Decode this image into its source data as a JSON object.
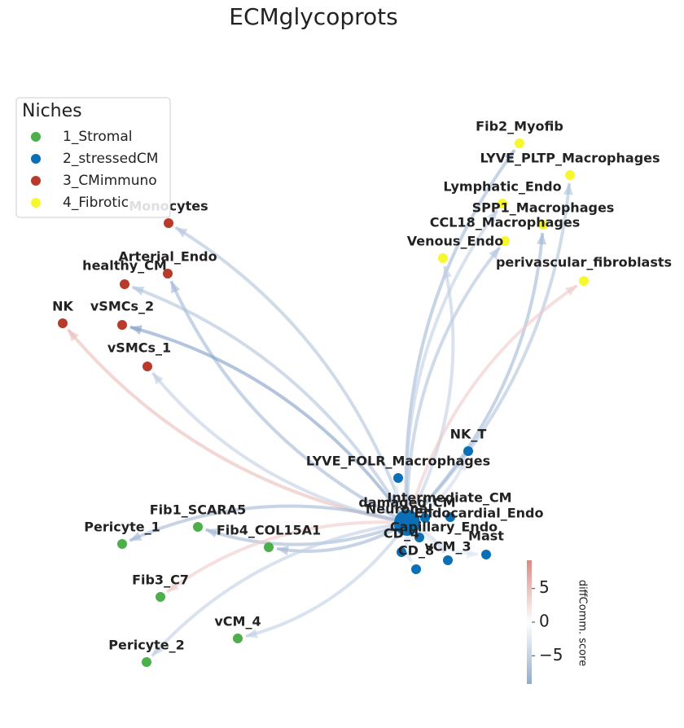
{
  "chart_data": {
    "type": "network",
    "title": "ECMglycoprots",
    "legend": {
      "title": "Niches",
      "corner": "upper left",
      "entries": [
        {
          "name": "1_Stromal",
          "color": "#4daf4a"
        },
        {
          "name": "2_stressedCM",
          "color": "#0a6fb4"
        },
        {
          "name": "3_CMimmuno",
          "color": "#b83a2a"
        },
        {
          "name": "4_Fibrotic",
          "color": "#f7f72e"
        }
      ]
    },
    "hub": "damaged_CM",
    "nodes": [
      {
        "label": "Fib2_Myofib",
        "niche": 3,
        "score": -6
      },
      {
        "label": "LYVE_PLTP_Macrophages",
        "niche": 3,
        "score": -5
      },
      {
        "label": "Lymphatic_Endo",
        "niche": 3,
        "score": -4
      },
      {
        "label": "SPP1_Macrophages",
        "niche": 3,
        "score": -6
      },
      {
        "label": "CCL18_Macrophages",
        "niche": 3,
        "score": -5
      },
      {
        "label": "Venous_Endo",
        "niche": 3,
        "score": -4
      },
      {
        "label": "perivascular_fibroblasts",
        "niche": 3,
        "score": 3
      },
      {
        "label": "Monocytes",
        "niche": 2,
        "score": -5
      },
      {
        "label": "Arterial_Endo",
        "niche": 2,
        "score": -6
      },
      {
        "label": "healthy_CM",
        "niche": 2,
        "score": -5
      },
      {
        "label": "NK",
        "niche": 2,
        "score": 4
      },
      {
        "label": "vSMCs_2",
        "niche": 2,
        "score": -8
      },
      {
        "label": "vSMCs_1",
        "niche": 2,
        "score": -4
      },
      {
        "label": "NK_T",
        "niche": 1,
        "score": -3
      },
      {
        "label": "LYVE_FOLR_Macrophages",
        "niche": 1,
        "score": -2
      },
      {
        "label": "damaged_CM",
        "niche": 1
      },
      {
        "label": "Intermediate_CM",
        "niche": 1,
        "score": -3
      },
      {
        "label": "Neuronal",
        "niche": 1,
        "score": -3
      },
      {
        "label": "Endocardial_Endo",
        "niche": 1,
        "score": -3
      },
      {
        "label": "Capillary_Endo",
        "niche": 1,
        "score": -2
      },
      {
        "label": "CD_4",
        "niche": 1,
        "score": -2
      },
      {
        "label": "CD_8",
        "niche": 1,
        "score": -2
      },
      {
        "label": "vCM_3",
        "niche": 1,
        "score": -3
      },
      {
        "label": "Mast",
        "niche": 1,
        "score": -2
      },
      {
        "label": "Fib1_SCARA5",
        "niche": 0,
        "score": -6
      },
      {
        "label": "Pericyte_1",
        "niche": 0,
        "score": -6
      },
      {
        "label": "Fib4_COL15A1",
        "niche": 0,
        "score": -6
      },
      {
        "label": "Fib3_C7",
        "niche": 0,
        "score": 3
      },
      {
        "label": "vCM_4",
        "niche": 0,
        "score": -4
      },
      {
        "label": "Pericyte_2",
        "niche": 0,
        "score": -4
      }
    ],
    "colorbar": {
      "label": "diffComm. score",
      "ylim": [
        -9.2,
        9.2
      ],
      "yticks": [
        {
          "value": 5,
          "label": "5"
        },
        {
          "value": 0,
          "label": "0"
        },
        {
          "value": -5,
          "label": "−5"
        }
      ]
    }
  }
}
